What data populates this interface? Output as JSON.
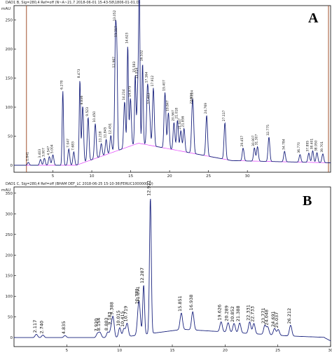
{
  "chart_data": [
    {
      "panel_letter": "A",
      "type": "line",
      "header": "DAD1 B, Sig=280,4 Ref=off (N~A~21.7 2018-06-01 15-43-58\\1806-01-01.D)",
      "yunit": "mAU",
      "xlim": [
        0,
        30
      ],
      "ylim": [
        0,
        270
      ],
      "xticks": [
        5,
        10,
        15,
        20,
        25,
        30
      ],
      "yticks": [
        0,
        50,
        100,
        150,
        200,
        250
      ],
      "line_color": "#1a237e",
      "baseline_color": "#e040fb",
      "marker_color": "#a0522d",
      "series": [
        {
          "peaks": [
            {
              "rt": "1.841",
              "x": 1.841,
              "h": 5
            },
            {
              "rt": "3.403",
              "x": 3.403,
              "h": 10
            },
            {
              "rt": "3.907",
              "x": 3.907,
              "h": 12
            },
            {
              "rt": "4.547",
              "x": 4.547,
              "h": 15
            },
            {
              "rt": "5.004",
              "x": 5.004,
              "h": 18
            },
            {
              "rt": "6.278",
              "x": 6.278,
              "h": 128
            },
            {
              "rt": "7.047",
              "x": 7.047,
              "h": 28
            },
            {
              "rt": "7.683",
              "x": 7.683,
              "h": 23
            },
            {
              "rt": "8.473",
              "x": 8.473,
              "h": 145
            },
            {
              "rt": "8.836",
              "x": 8.836,
              "h": 98
            },
            {
              "rt": "9.523",
              "x": 9.523,
              "h": 75
            },
            {
              "rt": "10.450",
              "x": 10.45,
              "h": 60
            },
            {
              "rt": "11.218",
              "x": 11.218,
              "h": 22
            },
            {
              "rt": "11.845",
              "x": 11.845,
              "h": 26
            },
            {
              "rt": "12.451",
              "x": 12.451,
              "h": 30
            },
            {
              "rt": "12.967",
              "x": 12.967,
              "h": 38
            },
            {
              "rt": "13.052",
              "x": 13.052,
              "h": 168
            },
            {
              "rt": "13.217",
              "x": 13.217,
              "h": 165
            },
            {
              "rt": "14.214",
              "x": 14.214,
              "h": 80
            },
            {
              "rt": "14.623",
              "x": 14.623,
              "h": 175
            },
            {
              "rt": "14.975",
              "x": 14.975,
              "h": 82
            },
            {
              "rt": "15.583",
              "x": 15.583,
              "h": 120
            },
            {
              "rt": "15.914",
              "x": 15.914,
              "h": 90
            },
            {
              "rt": "16.108",
              "x": 16.108,
              "h": 258
            },
            {
              "rt": "16.532",
              "x": 16.532,
              "h": 140
            },
            {
              "rt": "17.164",
              "x": 17.164,
              "h": 98
            },
            {
              "rt": "17.403",
              "x": 17.403,
              "h": 58
            },
            {
              "rt": "17.912",
              "x": 17.912,
              "h": 100
            },
            {
              "rt": "19.407",
              "x": 19.407,
              "h": 96
            },
            {
              "rt": "19.847",
              "x": 19.847,
              "h": 62
            },
            {
              "rt": "20.567",
              "x": 20.567,
              "h": 47
            },
            {
              "rt": "21.018",
              "x": 21.018,
              "h": 52
            },
            {
              "rt": "21.447",
              "x": 21.447,
              "h": 35
            },
            {
              "rt": "21.856",
              "x": 21.856,
              "h": 40
            },
            {
              "rt": "22.904",
              "x": 22.904,
              "h": 48
            },
            {
              "rt": "23.024",
              "x": 23.024,
              "h": 60
            },
            {
              "rt": "24.769",
              "x": 24.769,
              "h": 70
            },
            {
              "rt": "27.117",
              "x": 27.117,
              "h": 63
            },
            {
              "rt": "29.457",
              "x": 29.457,
              "h": 22
            },
            {
              "rt": "30.907",
              "x": 30.907,
              "h": 23
            },
            {
              "rt": "31.307",
              "x": 31.307,
              "h": 25
            },
            {
              "rt": "32.775",
              "x": 32.775,
              "h": 42
            },
            {
              "rt": "34.784",
              "x": 34.784,
              "h": 18
            },
            {
              "rt": "36.770",
              "x": 36.77,
              "h": 13
            },
            {
              "rt": "37.895",
              "x": 37.895,
              "h": 16
            },
            {
              "rt": "38.401",
              "x": 38.401,
              "h": 20
            },
            {
              "rt": "38.950",
              "x": 38.95,
              "h": 17
            },
            {
              "rt": "39.701",
              "x": 39.701,
              "h": 15
            }
          ]
        }
      ]
    },
    {
      "panel_letter": "B",
      "type": "line",
      "header": "DAD1 C, Sig=280,4 Ref=off (BHAM DEF_LC 2018-06-25 15-10-36\\FERUC1000000.D)",
      "yunit": "mAU",
      "xlim": [
        0,
        30
      ],
      "ylim": [
        -10,
        360
      ],
      "xticks": [
        5,
        10,
        15,
        20,
        25,
        30
      ],
      "yticks": [
        0,
        50,
        100,
        150,
        200,
        250,
        300,
        350
      ],
      "line_color": "#1a237e",
      "series": [
        {
          "peaks": [
            {
              "rt": "2.117",
              "x": 2.117,
              "h": 8
            },
            {
              "rt": "2.740",
              "x": 2.74,
              "h": 6
            },
            {
              "rt": "4.835",
              "x": 4.835,
              "h": 5
            },
            {
              "rt": "7.920",
              "x": 7.92,
              "h": 10
            },
            {
              "rt": "8.154",
              "x": 8.154,
              "h": 12
            },
            {
              "rt": "8.883",
              "x": 8.883,
              "h": 13
            },
            {
              "rt": "9.183",
              "x": 9.183,
              "h": 18
            },
            {
              "rt": "9.388",
              "x": 9.388,
              "h": 48
            },
            {
              "rt": "10.015",
              "x": 10.015,
              "h": 24
            },
            {
              "rt": "10.415",
              "x": 10.415,
              "h": 20
            },
            {
              "rt": "10.719",
              "x": 10.719,
              "h": 32
            },
            {
              "rt": "11.771",
              "x": 11.771,
              "h": 42
            },
            {
              "rt": "11.891",
              "x": 11.891,
              "h": 52
            },
            {
              "rt": "12.287",
              "x": 12.287,
              "h": 120
            },
            {
              "rt": "12.921",
              "x": 12.921,
              "h": 330
            },
            {
              "rt": "15.851",
              "x": 15.851,
              "h": 40
            },
            {
              "rt": "16.938",
              "x": 16.938,
              "h": 44
            },
            {
              "rt": "19.626",
              "x": 19.626,
              "h": 24
            },
            {
              "rt": "20.289",
              "x": 20.289,
              "h": 23
            },
            {
              "rt": "20.852",
              "x": 20.852,
              "h": 22
            },
            {
              "rt": "21.388",
              "x": 21.388,
              "h": 24
            },
            {
              "rt": "22.331",
              "x": 22.331,
              "h": 28
            },
            {
              "rt": "22.733",
              "x": 22.733,
              "h": 25
            },
            {
              "rt": "23.771",
              "x": 23.771,
              "h": 22
            },
            {
              "rt": "24.048",
              "x": 24.048,
              "h": 18
            },
            {
              "rt": "24.691",
              "x": 24.691,
              "h": 16
            },
            {
              "rt": "25.037",
              "x": 25.037,
              "h": 14
            },
            {
              "rt": "26.212",
              "x": 26.212,
              "h": 26
            }
          ]
        }
      ]
    }
  ]
}
